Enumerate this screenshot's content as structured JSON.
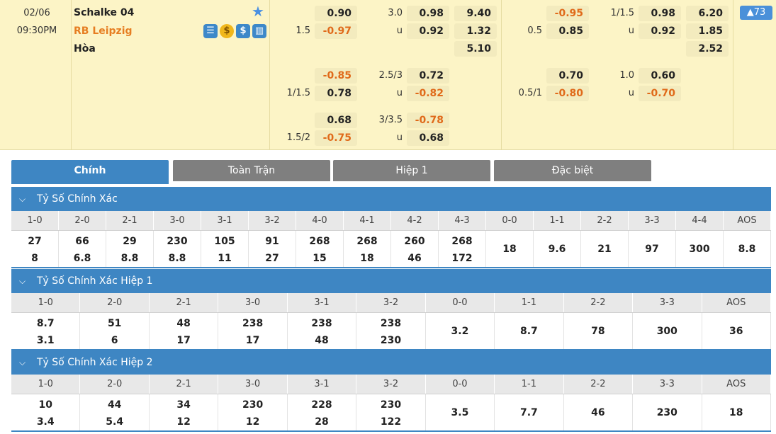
{
  "match": {
    "date": "02/06",
    "time": "09:30PM",
    "home": "Schalke 04",
    "away": "RB Leipzig",
    "draw": "Hòa",
    "count_badge": "▲73",
    "icons": [
      "scoreboard-icon",
      "coin-icon",
      "dollar-icon",
      "stats-icon"
    ],
    "icon_glyphs": [
      "☰",
      "$",
      "$",
      "▥"
    ]
  },
  "odds": {
    "ft_ah_1": [
      "0.90",
      "-0.97"
    ],
    "ft_ah_1_line": "1.5",
    "ft_ou_1_line": "3.0",
    "ft_ou_1": [
      "0.98",
      "0.92"
    ],
    "ft_ou_u": "u",
    "ft_1x2": [
      "9.40",
      "1.32",
      "5.10"
    ],
    "ft_ah_2": [
      "-0.85",
      "0.78"
    ],
    "ft_ah_2_line": "1/1.5",
    "ft_ou_2_line": "2.5/3",
    "ft_ou_2": [
      "0.72",
      "-0.82"
    ],
    "ft_ah_3": [
      "0.68",
      "-0.75"
    ],
    "ft_ah_3_line": "1.5/2",
    "ft_ou_3_line": "3/3.5",
    "ft_ou_3": [
      "-0.78",
      "0.68"
    ],
    "h1_ah_1": [
      "-0.95",
      "0.85"
    ],
    "h1_ah_1_line": "0.5",
    "h1_ou_1_line": "1/1.5",
    "h1_ou_1": [
      "0.98",
      "0.92"
    ],
    "h1_1x2": [
      "6.20",
      "1.85",
      "2.52"
    ],
    "h1_ah_2": [
      "0.70",
      "-0.80"
    ],
    "h1_ah_2_line": "0.5/1",
    "h1_ou_2_line": "1.0",
    "h1_ou_2": [
      "0.60",
      "-0.70"
    ]
  },
  "tabs": [
    "Chính",
    "Toàn Trận",
    "Hiệp 1",
    "Đặc biệt"
  ],
  "sections": [
    {
      "title": "Tỷ Số Chính Xác",
      "headers": [
        "1-0",
        "2-0",
        "2-1",
        "3-0",
        "3-1",
        "3-2",
        "4-0",
        "4-1",
        "4-2",
        "4-3",
        "0-0",
        "1-1",
        "2-2",
        "3-3",
        "4-4",
        "AOS"
      ],
      "values": [
        [
          "27",
          "8"
        ],
        [
          "66",
          "6.8"
        ],
        [
          "29",
          "8.8"
        ],
        [
          "230",
          "8.8"
        ],
        [
          "105",
          "11"
        ],
        [
          "91",
          "27"
        ],
        [
          "268",
          "15"
        ],
        [
          "268",
          "18"
        ],
        [
          "260",
          "46"
        ],
        [
          "268",
          "172"
        ],
        [
          "18"
        ],
        [
          "9.6"
        ],
        [
          "21"
        ],
        [
          "97"
        ],
        [
          "300"
        ],
        [
          "8.8"
        ]
      ]
    },
    {
      "title": "Tỷ Số Chính Xác Hiệp 1",
      "headers": [
        "1-0",
        "2-0",
        "2-1",
        "3-0",
        "3-1",
        "3-2",
        "0-0",
        "1-1",
        "2-2",
        "3-3",
        "AOS"
      ],
      "values": [
        [
          "8.7",
          "3.1"
        ],
        [
          "51",
          "6"
        ],
        [
          "48",
          "17"
        ],
        [
          "238",
          "17"
        ],
        [
          "238",
          "48"
        ],
        [
          "238",
          "230"
        ],
        [
          "3.2"
        ],
        [
          "8.7"
        ],
        [
          "78"
        ],
        [
          "300"
        ],
        [
          "36"
        ]
      ]
    },
    {
      "title": "Tỷ Số Chính Xác Hiệp 2",
      "headers": [
        "1-0",
        "2-0",
        "2-1",
        "3-0",
        "3-1",
        "3-2",
        "0-0",
        "1-1",
        "2-2",
        "3-3",
        "AOS"
      ],
      "values": [
        [
          "10",
          "3.4"
        ],
        [
          "44",
          "5.4"
        ],
        [
          "34",
          "12"
        ],
        [
          "230",
          "12"
        ],
        [
          "228",
          "28"
        ],
        [
          "230",
          "122"
        ],
        [
          "3.5"
        ],
        [
          "7.7"
        ],
        [
          "46"
        ],
        [
          "230"
        ],
        [
          "18"
        ]
      ]
    }
  ]
}
